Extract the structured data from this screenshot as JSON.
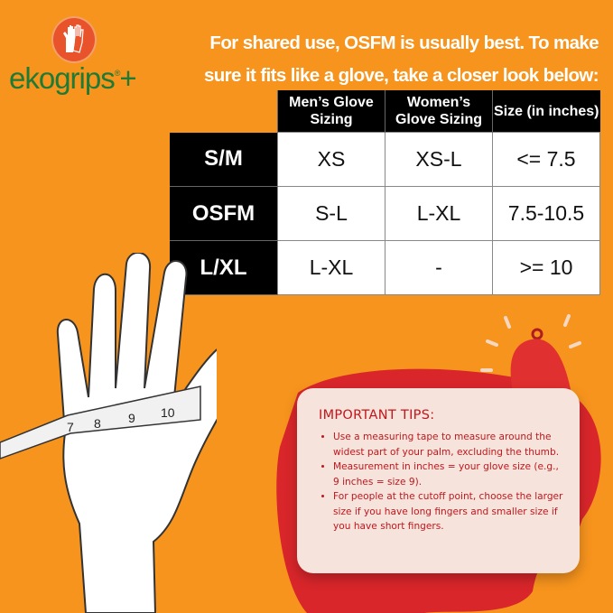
{
  "brand": {
    "name": "ekogrips",
    "registered": "®",
    "plus": "+"
  },
  "headline": {
    "line1": "For shared use, OSFM is usually best. To make",
    "line2": "sure it fits like a glove, take a closer look below:"
  },
  "table": {
    "headers": [
      "Men’s Glove Sizing",
      "Women’s Glove Sizing",
      "Size (in inches)"
    ],
    "rows": [
      {
        "label": "S/M",
        "cells": [
          "XS",
          "XS-L",
          "<= 7.5"
        ]
      },
      {
        "label": "OSFM",
        "cells": [
          "S-L",
          "L-XL",
          "7.5-10.5"
        ]
      },
      {
        "label": "L/XL",
        "cells": [
          "L-XL",
          "-",
          ">= 10"
        ]
      }
    ]
  },
  "tape": {
    "marks": [
      "7",
      "8",
      "9",
      "10"
    ]
  },
  "tips": {
    "title": "IMPORTANT TIPS:",
    "items": [
      "Use a measuring tape to measure around the widest part of your palm, excluding the thumb.",
      "Measurement in inches = your glove size (e.g., 9 inches = size 9).",
      "For people at the cutoff point, choose the larger size if you have long fingers and smaller size if you have short fingers."
    ]
  },
  "colors": {
    "background": "#f7941d",
    "brand_green": "#1e7a34",
    "tips_text": "#c0171d",
    "table_header": "#000000",
    "splash": "#d9262b"
  }
}
